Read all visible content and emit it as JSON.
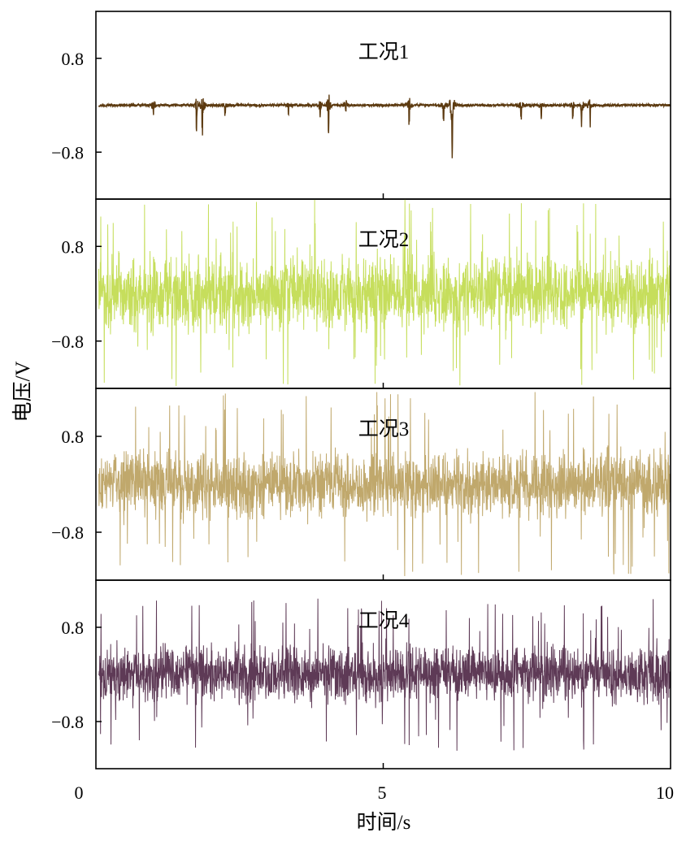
{
  "chart_data": {
    "type": "line",
    "layout": "stacked",
    "ylabel": "电压/V",
    "xlabel": "时间/s",
    "xlim": [
      0,
      10
    ],
    "xticks": [
      0,
      5,
      10
    ],
    "xtick_labels": [
      "0",
      "5",
      "10"
    ],
    "ylim": [
      -1.6,
      1.6
    ],
    "yticks": [
      0.8,
      -0.8
    ],
    "ytick_labels": [
      "0.8",
      "−0.8"
    ],
    "signal_start_s": 0.05,
    "signal_end_s": 10.0,
    "panels": [
      {
        "title": "工况1",
        "color": "#5c3a10",
        "noise_amplitude": 0.02,
        "bursts": [
          {
            "t": 1.0,
            "amp": 0.2
          },
          {
            "t": 1.75,
            "amp": 0.3
          },
          {
            "t": 1.85,
            "amp": 0.48
          },
          {
            "t": 2.25,
            "amp": 0.15
          },
          {
            "t": 3.35,
            "amp": 0.12
          },
          {
            "t": 3.9,
            "amp": 0.25
          },
          {
            "t": 4.05,
            "amp": 0.42
          },
          {
            "t": 4.35,
            "amp": 0.18
          },
          {
            "t": 5.45,
            "amp": 0.28
          },
          {
            "t": 6.05,
            "amp": 0.22
          },
          {
            "t": 6.2,
            "amp": 0.78
          },
          {
            "t": 7.4,
            "amp": 0.22
          },
          {
            "t": 7.75,
            "amp": 0.18
          },
          {
            "t": 8.3,
            "amp": 0.2
          },
          {
            "t": 8.45,
            "amp": 0.26
          },
          {
            "t": 8.6,
            "amp": 0.26
          }
        ]
      },
      {
        "title": "工况2",
        "color": "#c6de5c",
        "noise_amplitude": 0.42,
        "spike_amplitude": 1.6
      },
      {
        "title": "工况3",
        "color": "#c0a86c",
        "noise_amplitude": 0.36,
        "spike_amplitude": 1.55
      },
      {
        "title": "工况4",
        "color": "#5e3a56",
        "noise_amplitude": 0.32,
        "spike_amplitude": 1.3
      }
    ]
  }
}
